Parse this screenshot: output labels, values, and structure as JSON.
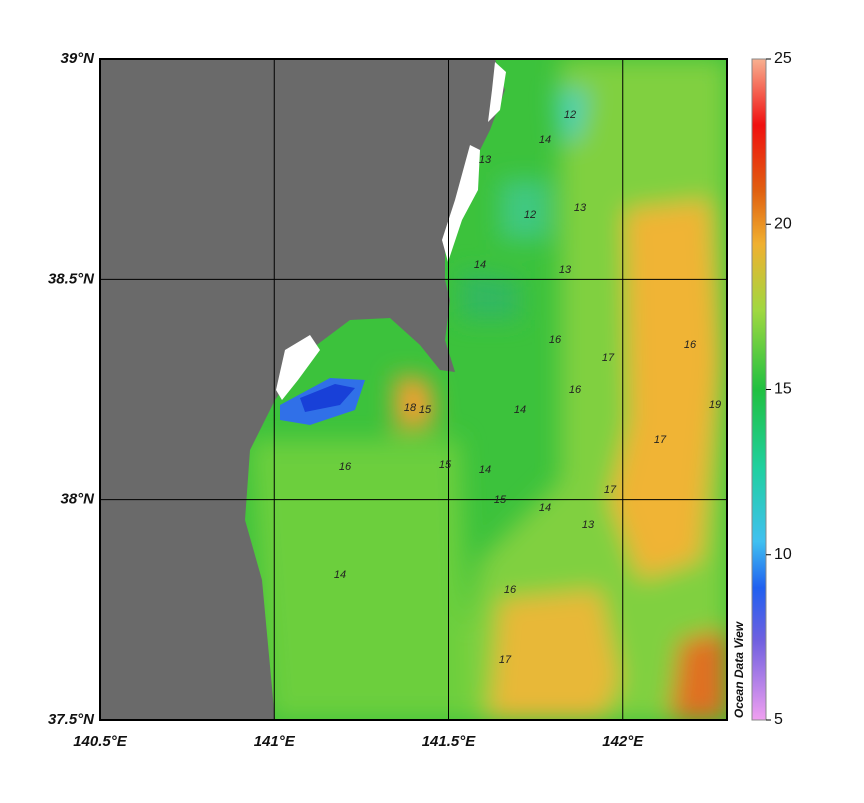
{
  "map": {
    "xlim": [
      140.5,
      142.3
    ],
    "ylim": [
      37.5,
      39
    ],
    "xticks": [
      {
        "value": 140.5,
        "label": "140.5°E"
      },
      {
        "value": 141,
        "label": "141°E"
      },
      {
        "value": 141.5,
        "label": "141.5°E"
      },
      {
        "value": 142,
        "label": "142°E"
      }
    ],
    "yticks": [
      {
        "value": 39,
        "label": "39°N"
      },
      {
        "value": 38.5,
        "label": "38.5°N"
      },
      {
        "value": 38,
        "label": "38°N"
      },
      {
        "value": 37.5,
        "label": "37.5°N"
      }
    ],
    "grid": true,
    "contour_labels": [
      12,
      13,
      14,
      13,
      14,
      16,
      12,
      13,
      14,
      17,
      16,
      15,
      14,
      16,
      13,
      14,
      15,
      17,
      16,
      17,
      19,
      18,
      15,
      14,
      16,
      17
    ]
  },
  "colorbar": {
    "range": [
      5,
      25
    ],
    "ticks": [
      25,
      20,
      15,
      10,
      5
    ]
  },
  "credit": "Ocean Data View"
}
